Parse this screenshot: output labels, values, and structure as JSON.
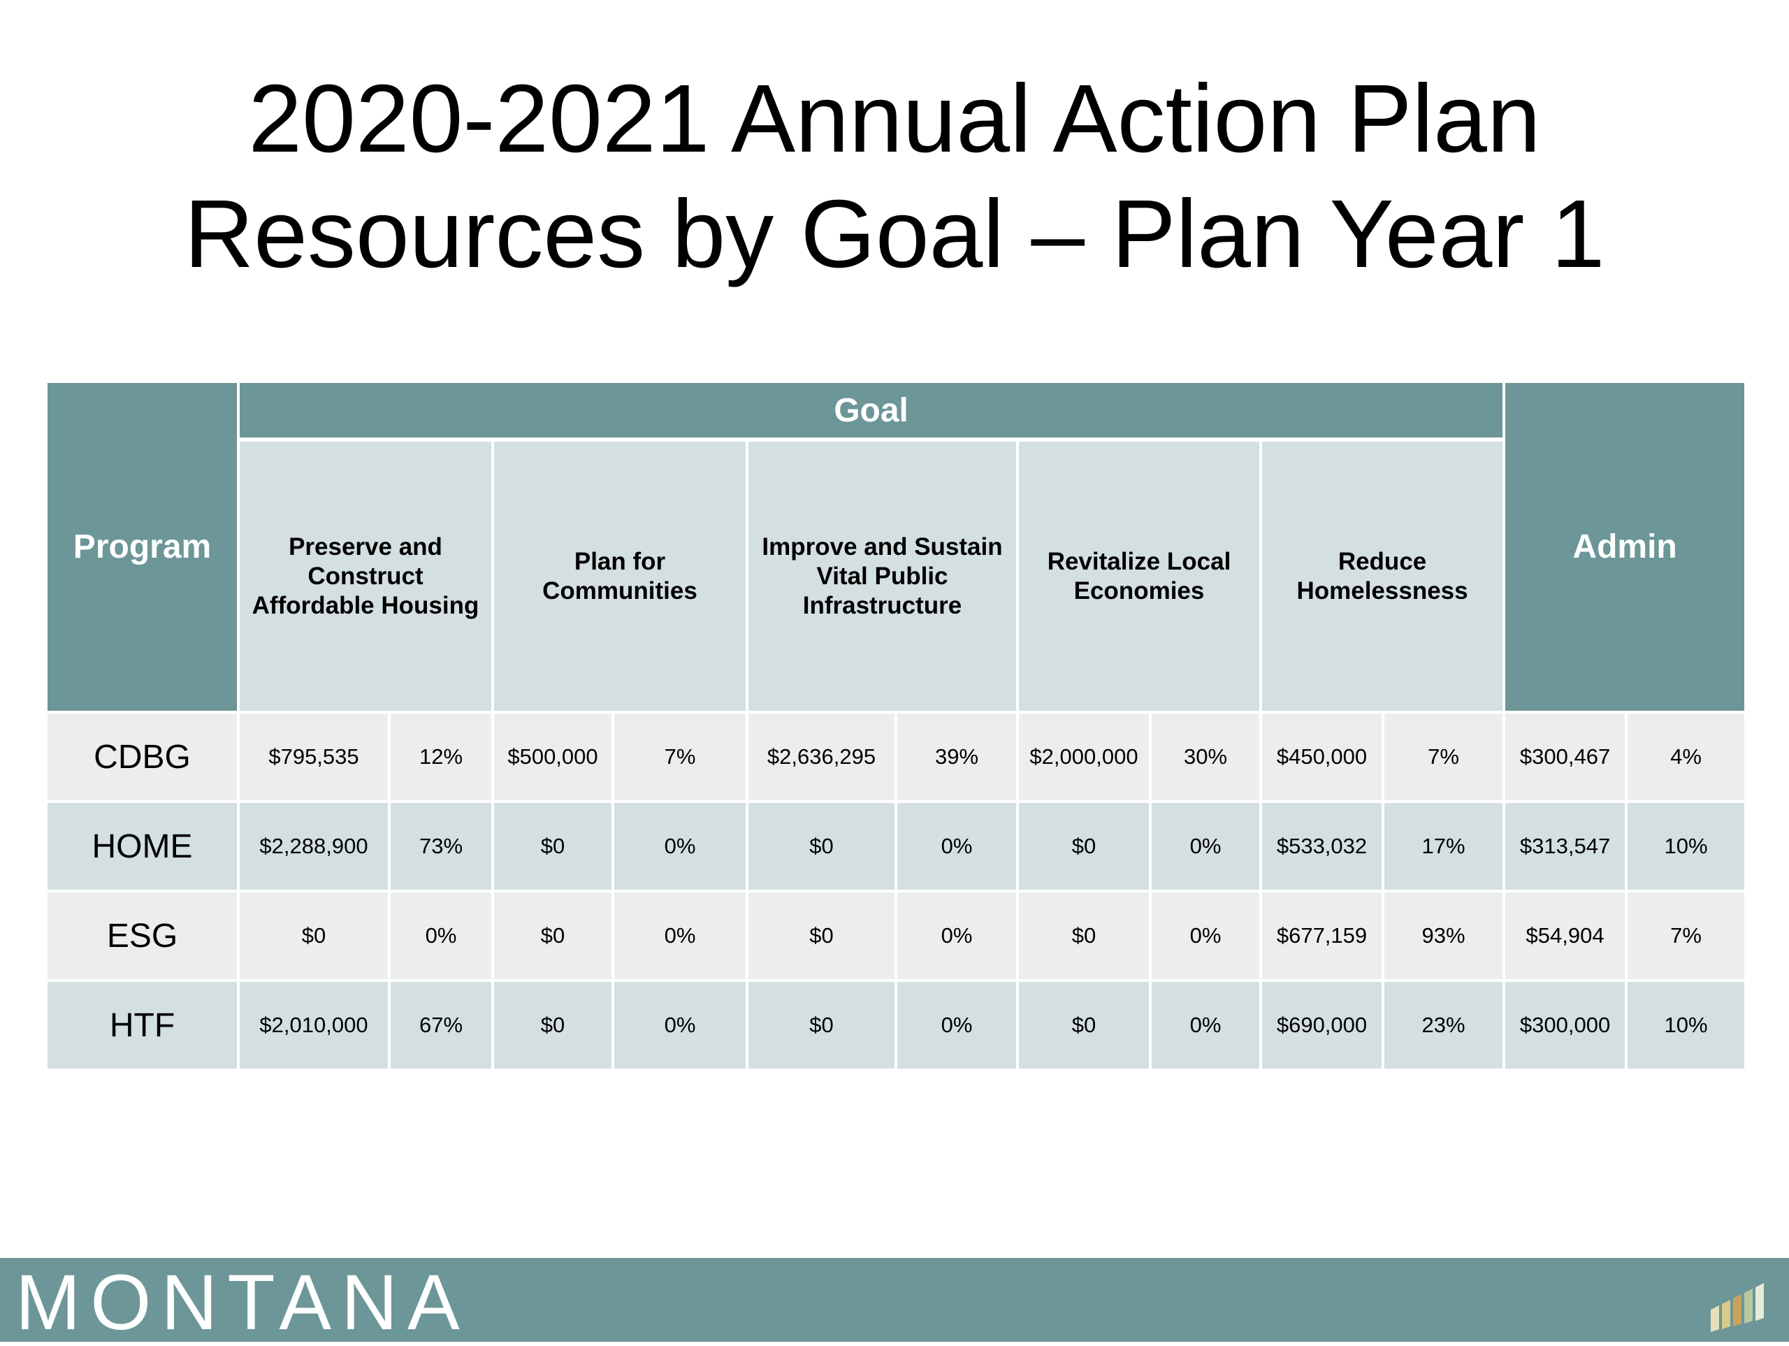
{
  "title": {
    "line1": "2020-2021 Annual Action Plan",
    "line2": "Resources by Goal – Plan Year 1"
  },
  "table": {
    "program_header": "Program",
    "goal_header": "Goal",
    "admin_header": "Admin",
    "goals": [
      "Preserve and Construct Affordable Housing",
      "Plan for Communities",
      "Improve and Sustain Vital Public Infrastructure",
      "Revitalize Local Economies",
      "Reduce Homelessness"
    ],
    "rows": [
      {
        "program": "CDBG",
        "cells": [
          "$795,535",
          "12%",
          "$500,000",
          "7%",
          "$2,636,295",
          "39%",
          "$2,000,000",
          "30%",
          "$450,000",
          "7%",
          "$300,467",
          "4%"
        ]
      },
      {
        "program": "HOME",
        "cells": [
          "$2,288,900",
          "73%",
          "$0",
          "0%",
          "$0",
          "0%",
          "$0",
          "0%",
          "$533,032",
          "17%",
          "$313,547",
          "10%"
        ]
      },
      {
        "program": "ESG",
        "cells": [
          "$0",
          "0%",
          "$0",
          "0%",
          "$0",
          "0%",
          "$0",
          "0%",
          "$677,159",
          "93%",
          "$54,904",
          "7%"
        ]
      },
      {
        "program": "HTF",
        "cells": [
          "$2,010,000",
          "67%",
          "$0",
          "0%",
          "$0",
          "0%",
          "$0",
          "0%",
          "$690,000",
          "23%",
          "$300,000",
          "10%"
        ]
      }
    ]
  },
  "footer": {
    "brand": "MONTANA",
    "logo_icon": "bar-graphic-logo-icon"
  },
  "colors": {
    "header_teal": "#6c9698",
    "light_teal": "#d3dfe0",
    "light_gray": "#eceeed"
  }
}
